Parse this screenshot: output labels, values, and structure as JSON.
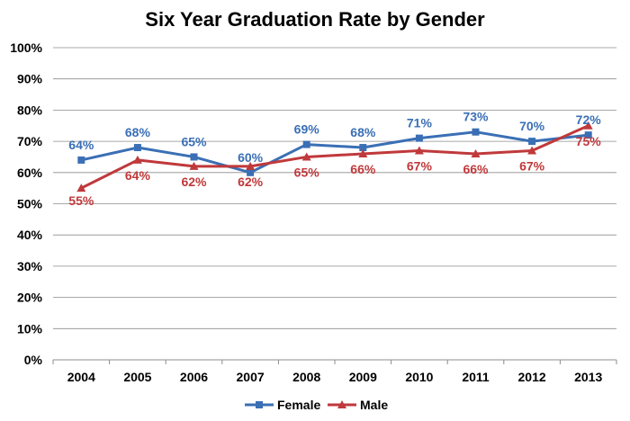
{
  "chart_data": {
    "type": "line",
    "title": "Six Year Graduation Rate by Gender",
    "xlabel": "",
    "ylabel": "",
    "categories": [
      "2004",
      "2005",
      "2006",
      "2007",
      "2008",
      "2009",
      "2010",
      "2011",
      "2012",
      "2013"
    ],
    "ylim": [
      0,
      100
    ],
    "yticks": [
      0,
      10,
      20,
      30,
      40,
      50,
      60,
      70,
      80,
      90,
      100
    ],
    "ytick_labels": [
      "0%",
      "10%",
      "20%",
      "30%",
      "40%",
      "50%",
      "60%",
      "70%",
      "80%",
      "90%",
      "100%"
    ],
    "grid": true,
    "legend_position": "bottom-center",
    "series": [
      {
        "name": "Female",
        "color": "#3a6fb5",
        "marker": "square",
        "values": [
          64,
          68,
          65,
          60,
          69,
          68,
          71,
          73,
          70,
          72
        ],
        "labels": [
          "64%",
          "68%",
          "65%",
          "60%",
          "69%",
          "68%",
          "71%",
          "73%",
          "70%",
          "72%"
        ]
      },
      {
        "name": "Male",
        "color": "#c0393b",
        "marker": "triangle",
        "values": [
          55,
          64,
          62,
          62,
          65,
          66,
          67,
          66,
          67,
          75
        ],
        "labels": [
          "55%",
          "64%",
          "62%",
          "62%",
          "65%",
          "66%",
          "67%",
          "66%",
          "67%",
          "75%"
        ]
      }
    ]
  }
}
